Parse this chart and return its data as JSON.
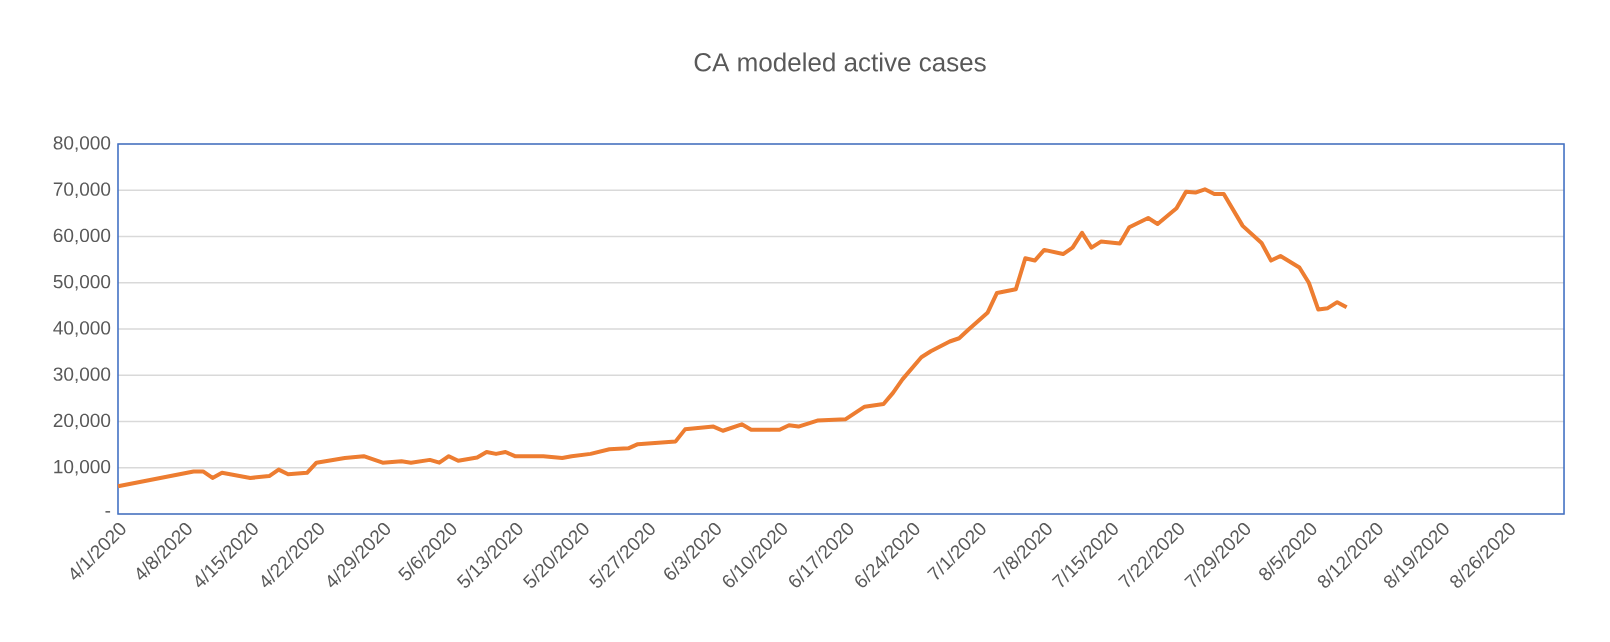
{
  "chart_data": {
    "type": "line",
    "title": "CA modeled active cases",
    "x": [
      "2020-04-01",
      "2020-04-09",
      "2020-04-10",
      "2020-04-11",
      "2020-04-12",
      "2020-04-15",
      "2020-04-17",
      "2020-04-18",
      "2020-04-19",
      "2020-04-21",
      "2020-04-22",
      "2020-04-25",
      "2020-04-27",
      "2020-04-29",
      "2020-05-01",
      "2020-05-02",
      "2020-05-04",
      "2020-05-05",
      "2020-05-06",
      "2020-05-07",
      "2020-05-09",
      "2020-05-10",
      "2020-05-11",
      "2020-05-12",
      "2020-05-13",
      "2020-05-16",
      "2020-05-18",
      "2020-05-19",
      "2020-05-21",
      "2020-05-23",
      "2020-05-25",
      "2020-05-26",
      "2020-05-30",
      "2020-05-31",
      "2020-06-03",
      "2020-06-04",
      "2020-06-06",
      "2020-06-07",
      "2020-06-10",
      "2020-06-11",
      "2020-06-12",
      "2020-06-14",
      "2020-06-17",
      "2020-06-19",
      "2020-06-21",
      "2020-06-22",
      "2020-06-23",
      "2020-06-25",
      "2020-06-26",
      "2020-06-28",
      "2020-06-29",
      "2020-06-30",
      "2020-07-02",
      "2020-07-03",
      "2020-07-05",
      "2020-07-06",
      "2020-07-07",
      "2020-07-08",
      "2020-07-10",
      "2020-07-11",
      "2020-07-12",
      "2020-07-13",
      "2020-07-14",
      "2020-07-16",
      "2020-07-17",
      "2020-07-19",
      "2020-07-20",
      "2020-07-22",
      "2020-07-23",
      "2020-07-24",
      "2020-07-25",
      "2020-07-26",
      "2020-07-27",
      "2020-07-29",
      "2020-07-31",
      "2020-08-01",
      "2020-08-02",
      "2020-08-04",
      "2020-08-05",
      "2020-08-06",
      "2020-08-07",
      "2020-08-08",
      "2020-08-09"
    ],
    "series": [
      {
        "color": "#ed7d31",
        "values": [
          6000,
          9200,
          9200,
          7800,
          8900,
          7800,
          8200,
          9600,
          8600,
          8900,
          11100,
          12100,
          12500,
          11100,
          11400,
          11100,
          11700,
          11100,
          12500,
          11500,
          12200,
          13400,
          13000,
          13400,
          12500,
          12500,
          12100,
          12500,
          13000,
          14000,
          14200,
          15100,
          15700,
          18300,
          18900,
          18000,
          19400,
          18200,
          18200,
          19200,
          18900,
          20200,
          20500,
          23200,
          23800,
          26200,
          29100,
          33900,
          35200,
          37300,
          38000,
          39900,
          43500,
          47800,
          48600,
          55300,
          54800,
          57100,
          56200,
          57600,
          60800,
          57600,
          58900,
          58500,
          62000,
          64000,
          62700,
          66100,
          69700,
          69500,
          70200,
          69200,
          69200,
          62300,
          58600,
          54800,
          55800,
          53300,
          50000,
          44200,
          44500,
          45800,
          44700
        ]
      }
    ],
    "xlim": [
      "2020-04-01",
      "2020-09-01"
    ],
    "xticks": [
      {
        "value": "2020-04-01",
        "label": "4/1/2020"
      },
      {
        "value": "2020-04-08",
        "label": "4/8/2020"
      },
      {
        "value": "2020-04-15",
        "label": "4/15/2020"
      },
      {
        "value": "2020-04-22",
        "label": "4/22/2020"
      },
      {
        "value": "2020-04-29",
        "label": "4/29/2020"
      },
      {
        "value": "2020-05-06",
        "label": "5/6/2020"
      },
      {
        "value": "2020-05-13",
        "label": "5/13/2020"
      },
      {
        "value": "2020-05-20",
        "label": "5/20/2020"
      },
      {
        "value": "2020-05-27",
        "label": "5/27/2020"
      },
      {
        "value": "2020-06-03",
        "label": "6/3/2020"
      },
      {
        "value": "2020-06-10",
        "label": "6/10/2020"
      },
      {
        "value": "2020-06-17",
        "label": "6/17/2020"
      },
      {
        "value": "2020-06-24",
        "label": "6/24/2020"
      },
      {
        "value": "2020-07-01",
        "label": "7/1/2020"
      },
      {
        "value": "2020-07-08",
        "label": "7/8/2020"
      },
      {
        "value": "2020-07-15",
        "label": "7/15/2020"
      },
      {
        "value": "2020-07-22",
        "label": "7/22/2020"
      },
      {
        "value": "2020-07-29",
        "label": "7/29/2020"
      },
      {
        "value": "2020-08-05",
        "label": "8/5/2020"
      },
      {
        "value": "2020-08-12",
        "label": "8/12/2020"
      },
      {
        "value": "2020-08-19",
        "label": "8/19/2020"
      },
      {
        "value": "2020-08-26",
        "label": "8/26/2020"
      }
    ],
    "ylim": [
      0,
      80000
    ],
    "yticks": [
      {
        "value": 0,
        "label": "-"
      },
      {
        "value": 10000,
        "label": "10,000"
      },
      {
        "value": 20000,
        "label": "20,000"
      },
      {
        "value": 30000,
        "label": "30,000"
      },
      {
        "value": 40000,
        "label": "40,000"
      },
      {
        "value": 50000,
        "label": "50,000"
      },
      {
        "value": 60000,
        "label": "60,000"
      },
      {
        "value": 70000,
        "label": "70,000"
      },
      {
        "value": 80000,
        "label": "80,000"
      }
    ],
    "grid": "y"
  }
}
